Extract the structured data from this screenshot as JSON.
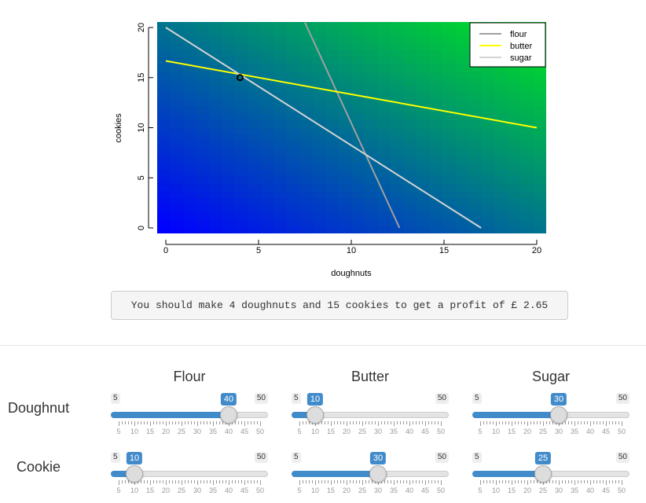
{
  "chart_data": {
    "type": "line",
    "xlabel": "doughnuts",
    "ylabel": "cookies",
    "xlim": [
      0,
      20
    ],
    "ylim": [
      0,
      20
    ],
    "x_ticks": [
      "0",
      "5",
      "10",
      "15",
      "20"
    ],
    "y_ticks": [
      "0",
      "5",
      "10",
      "15",
      "20"
    ],
    "background": "profit gradient: blue (low) to green (high)",
    "series": [
      {
        "name": "flour",
        "color": "#a0a0a0",
        "points": [
          [
            7.5,
            20.5
          ],
          [
            12.6,
            0
          ]
        ]
      },
      {
        "name": "butter",
        "color": "#ffff00",
        "points": [
          [
            0,
            16.67
          ],
          [
            20,
            10
          ]
        ]
      },
      {
        "name": "sugar",
        "color": "#d3d3d3",
        "points": [
          [
            0,
            20
          ],
          [
            17,
            0
          ]
        ]
      }
    ],
    "optimum": {
      "x": 4,
      "y": 15
    },
    "legend_position": "top-right"
  },
  "result_text": "You should make 4 doughnuts and 15 cookies to get a profit of £ 2.65",
  "columns": [
    "Flour",
    "Butter",
    "Sugar"
  ],
  "rows": [
    "Doughnut",
    "Cookie"
  ],
  "slider_min": "5",
  "slider_max": "50",
  "slider_grid": [
    "5",
    "10",
    "15",
    "20",
    "25",
    "30",
    "35",
    "40",
    "45",
    "50"
  ],
  "sliders": [
    {
      "row": "Doughnut",
      "col": "Flour",
      "value": 40
    },
    {
      "row": "Doughnut",
      "col": "Butter",
      "value": 10
    },
    {
      "row": "Doughnut",
      "col": "Sugar",
      "value": 30
    },
    {
      "row": "Cookie",
      "col": "Flour",
      "value": 10
    },
    {
      "row": "Cookie",
      "col": "Butter",
      "value": 30
    },
    {
      "row": "Cookie",
      "col": "Sugar",
      "value": 25
    }
  ]
}
